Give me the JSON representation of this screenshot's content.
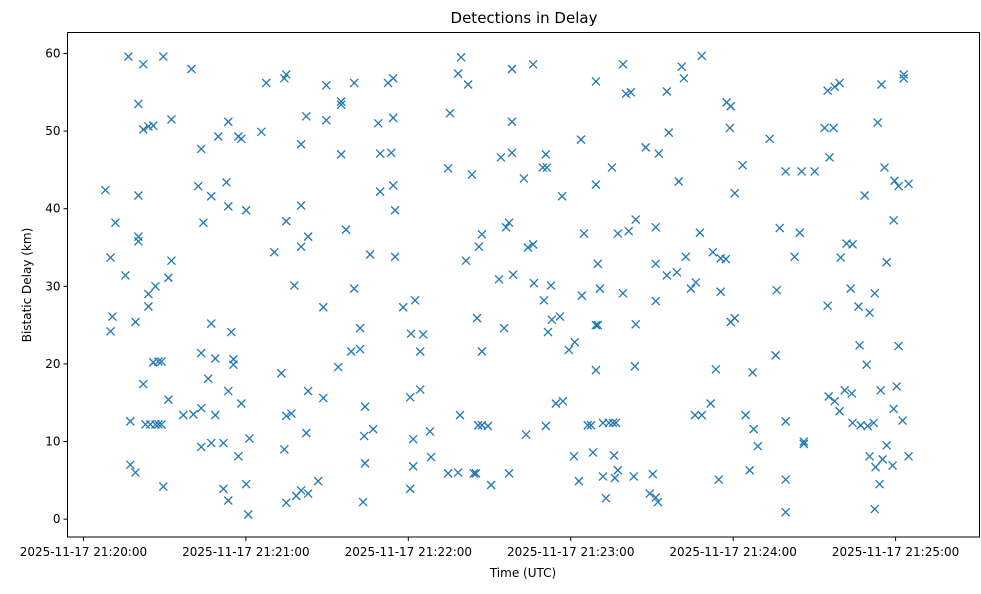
{
  "chart_data": {
    "type": "scatter",
    "title": "Detections in Delay",
    "xlabel": "Time (UTC)",
    "ylabel": "Bistatic Delay (km)",
    "x_units": "seconds after 2025-11-17 21:20:00 UTC",
    "xlim": [
      -5.9,
      331
    ],
    "ylim": [
      -2.3,
      62.7
    ],
    "grid": false,
    "marker": "x",
    "color": "#1f77b4",
    "x_ticks": [
      {
        "value": 0,
        "label": "2025-11-17 21:20:00"
      },
      {
        "value": 60,
        "label": "2025-11-17 21:21:00"
      },
      {
        "value": 120,
        "label": "2025-11-17 21:22:00"
      },
      {
        "value": 180,
        "label": "2025-11-17 21:23:00"
      },
      {
        "value": 240,
        "label": "2025-11-17 21:24:00"
      },
      {
        "value": 300,
        "label": "2025-11-17 21:25:00"
      }
    ],
    "y_ticks": [
      {
        "value": 0,
        "label": "0"
      },
      {
        "value": 10,
        "label": "10"
      },
      {
        "value": 20,
        "label": "20"
      },
      {
        "value": 30,
        "label": "30"
      },
      {
        "value": 40,
        "label": "40"
      },
      {
        "value": 50,
        "label": "50"
      },
      {
        "value": 60,
        "label": "60"
      }
    ],
    "points": [
      [
        8.1,
        42.4
      ],
      [
        10,
        33.7
      ],
      [
        10.7,
        26.1
      ],
      [
        10,
        24.2
      ],
      [
        11.8,
        38.2
      ],
      [
        15.5,
        31.4
      ],
      [
        16.6,
        59.6
      ],
      [
        17.3,
        12.6
      ],
      [
        17.3,
        7
      ],
      [
        19.2,
        6
      ],
      [
        19.2,
        25.4
      ],
      [
        20.3,
        53.5
      ],
      [
        20.3,
        41.7
      ],
      [
        20.3,
        36.4
      ],
      [
        20.3,
        35.8
      ],
      [
        22.1,
        58.6
      ],
      [
        22.1,
        50.2
      ],
      [
        24,
        50.6
      ],
      [
        22.1,
        17.4
      ],
      [
        24,
        29
      ],
      [
        24,
        27.4
      ],
      [
        25.8,
        50.7
      ],
      [
        25.8,
        20.2
      ],
      [
        26.6,
        30
      ],
      [
        27.7,
        20.3
      ],
      [
        28.8,
        20.3
      ],
      [
        22.9,
        12.2
      ],
      [
        24.7,
        12.2
      ],
      [
        26.6,
        12.2
      ],
      [
        27.7,
        12.2
      ],
      [
        28.8,
        12.2
      ],
      [
        29.5,
        59.6
      ],
      [
        29.5,
        4.2
      ],
      [
        31.4,
        15.4
      ],
      [
        31.4,
        31.1
      ],
      [
        32.5,
        33.3
      ],
      [
        32.5,
        51.5
      ],
      [
        36.9,
        13.4
      ],
      [
        39.9,
        58
      ],
      [
        40.6,
        13.5
      ],
      [
        42.4,
        42.9
      ],
      [
        43.5,
        47.7
      ],
      [
        43.5,
        21.4
      ],
      [
        43.5,
        9.3
      ],
      [
        43.5,
        14.3
      ],
      [
        44.3,
        38.2
      ],
      [
        46.1,
        18.1
      ],
      [
        47.2,
        25.2
      ],
      [
        47.2,
        41.6
      ],
      [
        47.2,
        9.8
      ],
      [
        48.7,
        20.7
      ],
      [
        48.7,
        13.4
      ],
      [
        49.8,
        49.3
      ],
      [
        51.7,
        9.8
      ],
      [
        51.7,
        3.9
      ],
      [
        52.8,
        43.4
      ],
      [
        53.5,
        51.2
      ],
      [
        53.5,
        40.3
      ],
      [
        53.5,
        16.5
      ],
      [
        53.5,
        2.4
      ],
      [
        54.6,
        24.1
      ],
      [
        55.4,
        20.6
      ],
      [
        55.4,
        19.9
      ],
      [
        57.2,
        49.3
      ],
      [
        58.3,
        49
      ],
      [
        57.2,
        8.1
      ],
      [
        58.3,
        14.9
      ],
      [
        60.1,
        39.8
      ],
      [
        60.1,
        4.5
      ],
      [
        60.9,
        0.6
      ],
      [
        61.3,
        10.4
      ],
      [
        65.7,
        49.9
      ],
      [
        67.5,
        56.2
      ],
      [
        70.5,
        34.4
      ],
      [
        73.1,
        18.8
      ],
      [
        74.2,
        56.8
      ],
      [
        74.9,
        57.3
      ],
      [
        74.9,
        38.4
      ],
      [
        74.2,
        9
      ],
      [
        74.9,
        2.1
      ],
      [
        74.9,
        13.3
      ],
      [
        76.8,
        13.6
      ],
      [
        77.9,
        30.1
      ],
      [
        78.6,
        3
      ],
      [
        80.4,
        48.3
      ],
      [
        80.4,
        40.4
      ],
      [
        80.4,
        35.1
      ],
      [
        80.4,
        3.7
      ],
      [
        82.3,
        51.9
      ],
      [
        82.3,
        11.1
      ],
      [
        83,
        36.4
      ],
      [
        83,
        3.3
      ],
      [
        83,
        16.5
      ],
      [
        86.7,
        4.9
      ],
      [
        88.6,
        27.3
      ],
      [
        88.6,
        15.6
      ],
      [
        89.7,
        51.4
      ],
      [
        89.7,
        55.9
      ],
      [
        94.1,
        19.6
      ],
      [
        95.2,
        53.8
      ],
      [
        95.2,
        53.4
      ],
      [
        95.2,
        47
      ],
      [
        97,
        37.3
      ],
      [
        98.9,
        21.6
      ],
      [
        100,
        56.2
      ],
      [
        100,
        29.7
      ],
      [
        102.2,
        24.6
      ],
      [
        102.2,
        21.9
      ],
      [
        103.3,
        2.2
      ],
      [
        103.7,
        10.7
      ],
      [
        104,
        14.5
      ],
      [
        104,
        7.2
      ],
      [
        105.9,
        34.1
      ],
      [
        107,
        11.6
      ],
      [
        108.9,
        51
      ],
      [
        109.6,
        42.2
      ],
      [
        109.6,
        47.1
      ],
      [
        112.5,
        56.2
      ],
      [
        113.7,
        47.2
      ],
      [
        114.4,
        51.7
      ],
      [
        114.4,
        56.8
      ],
      [
        114.4,
        43
      ],
      [
        115.1,
        39.8
      ],
      [
        115.1,
        33.8
      ],
      [
        118.1,
        27.3
      ],
      [
        120.7,
        15.7
      ],
      [
        120.7,
        3.9
      ],
      [
        121,
        23.9
      ],
      [
        121.8,
        10.3
      ],
      [
        121.8,
        6.8
      ],
      [
        122.5,
        28.2
      ],
      [
        124.4,
        16.7
      ],
      [
        124.4,
        21.6
      ],
      [
        125.5,
        23.8
      ],
      [
        128,
        11.3
      ],
      [
        128.4,
        8
      ],
      [
        134.7,
        45.2
      ],
      [
        134.7,
        5.9
      ],
      [
        135.4,
        52.3
      ],
      [
        138.4,
        6
      ],
      [
        138.4,
        57.4
      ],
      [
        139.1,
        13.4
      ],
      [
        139.5,
        59.5
      ],
      [
        141.3,
        33.3
      ],
      [
        142.1,
        56
      ],
      [
        143.5,
        44.4
      ],
      [
        144.2,
        5.9
      ],
      [
        145,
        5.9
      ],
      [
        145.4,
        25.9
      ],
      [
        146.1,
        35.1
      ],
      [
        147.2,
        36.7
      ],
      [
        147.2,
        21.6
      ],
      [
        145.8,
        12.1
      ],
      [
        147.2,
        12.1
      ],
      [
        149.4,
        12
      ],
      [
        150.6,
        4.4
      ],
      [
        153.5,
        30.9
      ],
      [
        154.2,
        46.6
      ],
      [
        155.4,
        24.6
      ],
      [
        156.1,
        37.6
      ],
      [
        157.2,
        38.2
      ],
      [
        157.2,
        5.9
      ],
      [
        158.3,
        58
      ],
      [
        158.3,
        51.2
      ],
      [
        158.3,
        47.2
      ],
      [
        158.7,
        31.5
      ],
      [
        162.7,
        43.9
      ],
      [
        163.5,
        10.9
      ],
      [
        164.2,
        35
      ],
      [
        166.1,
        58.6
      ],
      [
        166.1,
        35.4
      ],
      [
        166.4,
        30.4
      ],
      [
        169.7,
        45.3
      ],
      [
        170.1,
        28.2
      ],
      [
        170.8,
        47
      ],
      [
        171.2,
        45.3
      ],
      [
        170.8,
        12
      ],
      [
        171.6,
        24.1
      ],
      [
        172.7,
        30.1
      ],
      [
        173,
        25.7
      ],
      [
        174.5,
        14.9
      ],
      [
        176,
        26.1
      ],
      [
        176.8,
        41.6
      ],
      [
        177.1,
        15.2
      ],
      [
        179.3,
        21.8
      ],
      [
        181.5,
        22.8
      ],
      [
        181.2,
        8.1
      ],
      [
        183,
        4.9
      ],
      [
        183.8,
        48.9
      ],
      [
        184.1,
        28.8
      ],
      [
        184.9,
        36.8
      ],
      [
        186.3,
        12.1
      ],
      [
        187.5,
        12.1
      ],
      [
        188.2,
        8.6
      ],
      [
        189.3,
        43.1
      ],
      [
        189.3,
        56.4
      ],
      [
        189.3,
        19.2
      ],
      [
        189.3,
        25
      ],
      [
        190,
        25
      ],
      [
        190,
        32.9
      ],
      [
        190.8,
        29.7
      ],
      [
        191.9,
        5.5
      ],
      [
        191.9,
        12.4
      ],
      [
        193,
        2.7
      ],
      [
        194.1,
        12.4
      ],
      [
        195.2,
        45.3
      ],
      [
        195.6,
        12.4
      ],
      [
        196,
        8.2
      ],
      [
        196.7,
        12.4
      ],
      [
        196.3,
        5.3
      ],
      [
        197.4,
        6.3
      ],
      [
        197.4,
        36.8
      ],
      [
        199.3,
        58.6
      ],
      [
        199.3,
        29.1
      ],
      [
        200.4,
        54.8
      ],
      [
        202.2,
        55
      ],
      [
        201.4,
        37.1
      ],
      [
        203.3,
        5.5
      ],
      [
        203.7,
        19.7
      ],
      [
        204,
        25.1
      ],
      [
        204,
        38.6
      ],
      [
        207.7,
        47.9
      ],
      [
        209.2,
        3.3
      ],
      [
        210.3,
        5.8
      ],
      [
        211.4,
        2.8
      ],
      [
        212.2,
        2.2
      ],
      [
        211.4,
        37.6
      ],
      [
        211.4,
        32.9
      ],
      [
        211.4,
        28.1
      ],
      [
        212.5,
        47.1
      ],
      [
        215.5,
        55.1
      ],
      [
        215.5,
        31.4
      ],
      [
        216.2,
        49.8
      ],
      [
        219.2,
        31.8
      ],
      [
        219.9,
        43.5
      ],
      [
        221,
        58.3
      ],
      [
        221.8,
        56.8
      ],
      [
        222.5,
        33.8
      ],
      [
        224.4,
        29.7
      ],
      [
        225.9,
        13.4
      ],
      [
        226.2,
        30.5
      ],
      [
        227.7,
        36.9
      ],
      [
        228.4,
        13.4
      ],
      [
        228.4,
        59.7
      ],
      [
        231.7,
        14.9
      ],
      [
        232.5,
        34.4
      ],
      [
        233.6,
        19.3
      ],
      [
        234.7,
        5.1
      ],
      [
        235.4,
        33.6
      ],
      [
        235.4,
        29.3
      ],
      [
        237.3,
        33.5
      ],
      [
        237.6,
        53.7
      ],
      [
        239.1,
        53.2
      ],
      [
        238.8,
        50.4
      ],
      [
        239.1,
        25.4
      ],
      [
        240.6,
        25.9
      ],
      [
        240.6,
        42
      ],
      [
        243.5,
        45.6
      ],
      [
        244.6,
        13.4
      ],
      [
        246.1,
        6.3
      ],
      [
        247.2,
        18.9
      ],
      [
        247.6,
        11.6
      ],
      [
        249.1,
        9.4
      ],
      [
        253.5,
        49
      ],
      [
        255.7,
        21.1
      ],
      [
        256.1,
        29.5
      ],
      [
        257.2,
        37.5
      ],
      [
        259.4,
        12.6
      ],
      [
        259.4,
        44.8
      ],
      [
        259.4,
        5.1
      ],
      [
        259.4,
        0.9
      ],
      [
        262.7,
        33.8
      ],
      [
        264.6,
        36.9
      ],
      [
        265.3,
        44.8
      ],
      [
        266.1,
        10
      ],
      [
        266.1,
        9.7
      ],
      [
        270.1,
        44.8
      ],
      [
        273.8,
        50.4
      ],
      [
        274.9,
        55.2
      ],
      [
        274.9,
        27.5
      ],
      [
        275.3,
        15.8
      ],
      [
        275.6,
        46.6
      ],
      [
        277.1,
        50.4
      ],
      [
        277.5,
        55.7
      ],
      [
        277.5,
        15.2
      ],
      [
        279.3,
        56.2
      ],
      [
        279.3,
        13.9
      ],
      [
        279.7,
        33.7
      ],
      [
        281.2,
        16.6
      ],
      [
        281.9,
        35.5
      ],
      [
        283.4,
        29.7
      ],
      [
        284.1,
        35.4
      ],
      [
        283.8,
        16.2
      ],
      [
        284.1,
        12.4
      ],
      [
        286.3,
        27.4
      ],
      [
        286.7,
        22.4
      ],
      [
        287.1,
        12.1
      ],
      [
        288.6,
        41.7
      ],
      [
        289.3,
        19.9
      ],
      [
        289.7,
        12
      ],
      [
        290.4,
        26.6
      ],
      [
        290.4,
        8.1
      ],
      [
        291.9,
        12.4
      ],
      [
        292.3,
        1.3
      ],
      [
        292.3,
        29.1
      ],
      [
        292.6,
        6.7
      ],
      [
        293.4,
        51.1
      ],
      [
        294.1,
        4.5
      ],
      [
        294.5,
        16.6
      ],
      [
        295.2,
        7.7
      ],
      [
        294.8,
        56
      ],
      [
        295.9,
        45.3
      ],
      [
        296.7,
        33.1
      ],
      [
        296.7,
        9.5
      ],
      [
        298.9,
        6.9
      ],
      [
        299.3,
        38.5
      ],
      [
        299.3,
        14.2
      ],
      [
        299.6,
        43.6
      ],
      [
        300.4,
        17.1
      ],
      [
        301.1,
        42.9
      ],
      [
        301.1,
        22.3
      ],
      [
        302.6,
        12.7
      ],
      [
        303,
        56.8
      ],
      [
        303,
        57.3
      ],
      [
        304.8,
        8.1
      ],
      [
        304.8,
        43.2
      ]
    ]
  }
}
